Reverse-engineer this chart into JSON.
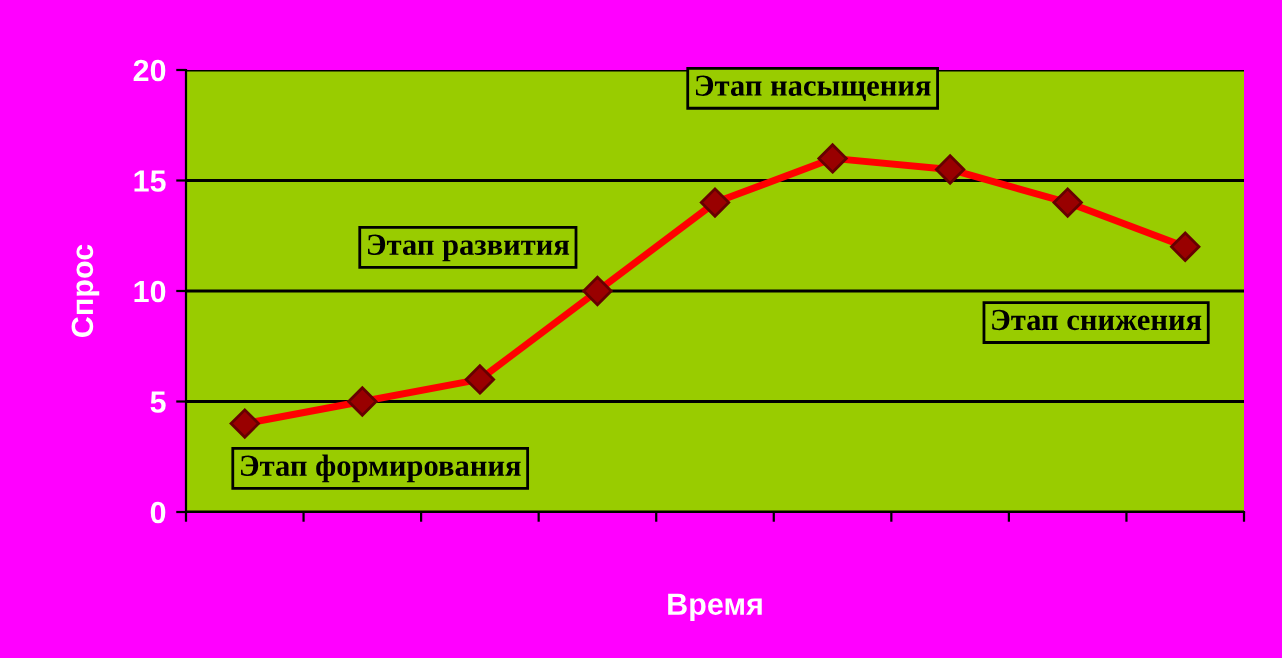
{
  "chart_data": {
    "type": "line",
    "xlabel": "Время",
    "ylabel": "Спрос",
    "categories": [
      null,
      null,
      null,
      null,
      null,
      null,
      null,
      null,
      null
    ],
    "series": [
      {
        "color": "#ff0000",
        "values": [
          4,
          5,
          6,
          10,
          14,
          16,
          15.5,
          14,
          12
        ]
      }
    ],
    "marker": "diamond",
    "line_style": "solid",
    "ylim": [
      0,
      20
    ],
    "yticks": [
      0,
      5,
      10,
      15,
      20
    ],
    "grid": "y",
    "legend": false,
    "annotations": [
      "Этап формирования",
      "Этап развития",
      "Этап насыщения",
      "Этап снижения"
    ]
  }
}
